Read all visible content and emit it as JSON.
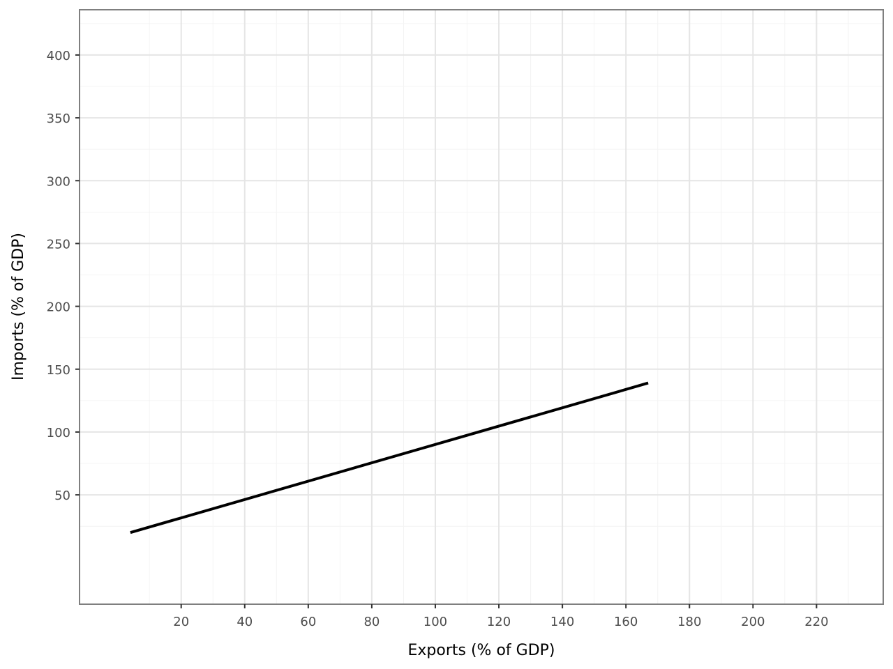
{
  "chart_data": {
    "type": "line",
    "title": "",
    "xlabel": "Exports (% of GDP)",
    "ylabel": "Imports (% of GDP)",
    "xlim": [
      -12,
      241
    ],
    "ylim": [
      -37,
      436
    ],
    "x_ticks": [
      20,
      40,
      60,
      80,
      100,
      120,
      140,
      160,
      180,
      200,
      220
    ],
    "y_ticks": [
      50,
      100,
      150,
      200,
      250,
      300,
      350,
      400
    ],
    "x_tick_labels": [
      "20",
      "40",
      "60",
      "80",
      "100",
      "120",
      "140",
      "160",
      "180",
      "200",
      "220"
    ],
    "y_tick_labels": [
      "50",
      "100",
      "150",
      "200",
      "250",
      "300",
      "350",
      "400"
    ],
    "grid": true,
    "series": [
      {
        "color": "#000000",
        "x": [
          4,
          167
        ],
        "y": [
          20,
          139
        ]
      }
    ]
  },
  "colors": {
    "panel_border": "#7f7f7f",
    "major_grid": "#e5e5e5",
    "minor_grid": "#f4f4f4",
    "tick_text": "#4d4d4d",
    "line": "#000000"
  }
}
